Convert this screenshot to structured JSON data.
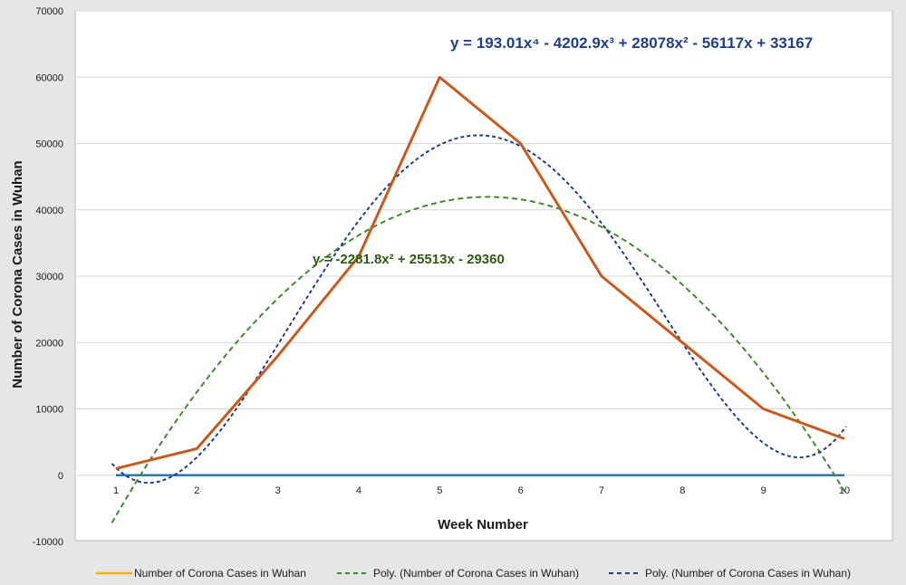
{
  "chart_data": {
    "type": "line",
    "xlabel": "Week Number",
    "ylabel": "Number of Corona Cases in Wuhan",
    "x": [
      1,
      2,
      3,
      4,
      5,
      6,
      7,
      8,
      9,
      10
    ],
    "xlim": [
      1,
      10
    ],
    "ylim": [
      -10000,
      70000
    ],
    "yticks": [
      -10000,
      0,
      10000,
      20000,
      30000,
      40000,
      50000,
      60000,
      70000
    ],
    "grid": true,
    "legend_position": "bottom",
    "series": [
      {
        "name": "Number of Corona Cases in Wuhan",
        "kind": "data",
        "legend_color": "#f5b300",
        "line_color": "#c85a1e",
        "values": [
          1000,
          4000,
          18000,
          33000,
          60000,
          50000,
          30000,
          20000,
          10000,
          5500
        ]
      },
      {
        "name": "Poly. (Number of Corona Cases in Wuhan)",
        "kind": "trend-quadratic",
        "color": "#3f8a2c",
        "equation": "y = -2281.8x² + 25513x - 29360",
        "coefficients": [
          -29360,
          25513,
          -2281.8
        ]
      },
      {
        "name": "Poly. (Number of Corona Cases in Wuhan)",
        "kind": "trend-quartic",
        "color": "#1f3f86",
        "equation": "y = 193.01x⁴ - 4202.9x³ + 28078x² - 56117x + 33167",
        "coefficients": [
          33167,
          -56117,
          28078,
          -4202.9,
          193.01
        ]
      }
    ],
    "zero_line_color": "#2e75b6"
  }
}
